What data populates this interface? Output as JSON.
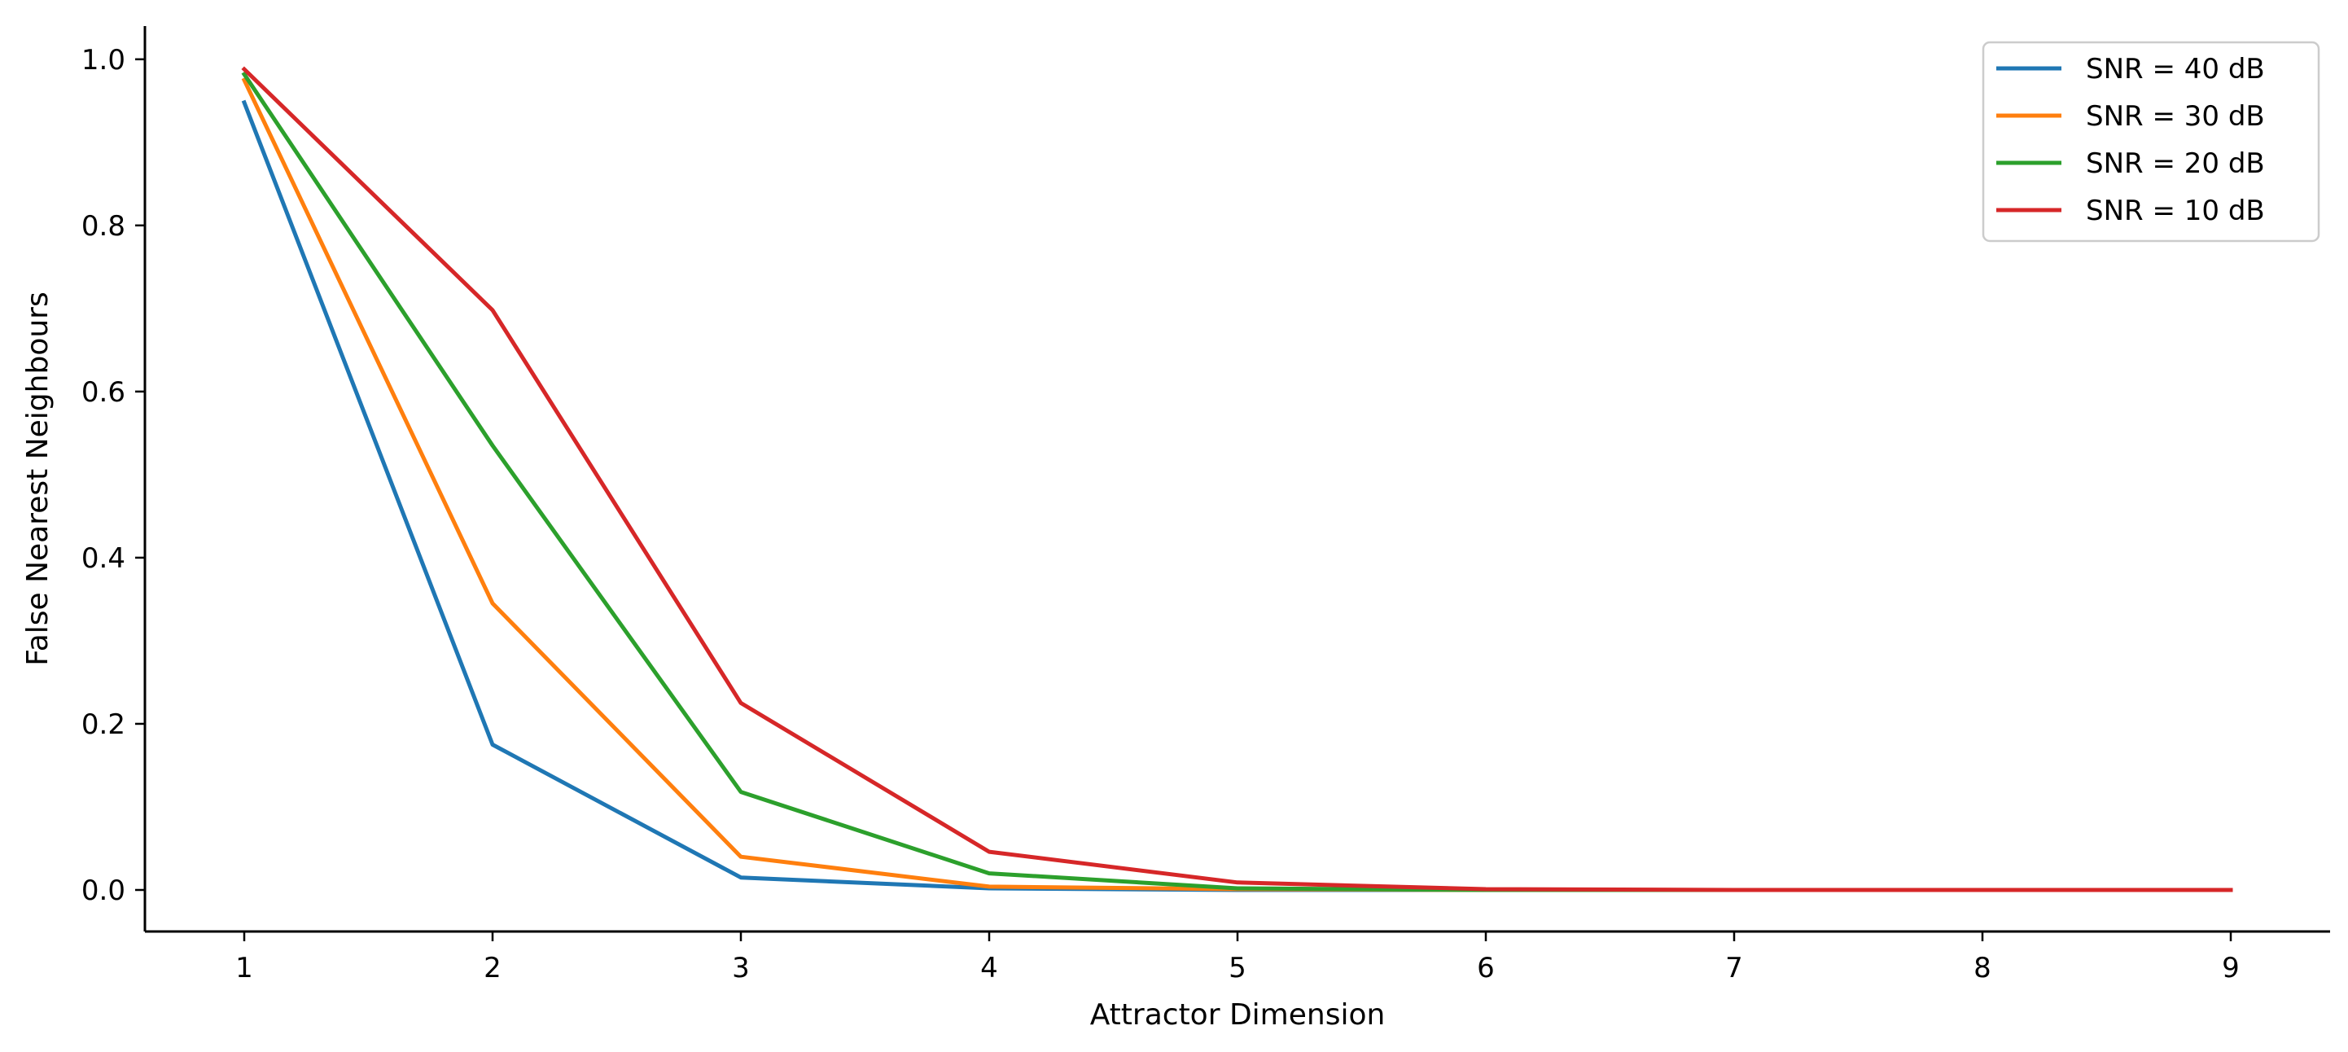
{
  "chart_data": {
    "type": "line",
    "title": "",
    "xlabel": "Attractor Dimension",
    "ylabel": "False Nearest Neighbours",
    "x": [
      1,
      2,
      3,
      4,
      5,
      6,
      7,
      8,
      9
    ],
    "xlim": [
      0.6,
      9.4
    ],
    "ylim": [
      -0.05,
      1.04
    ],
    "xticks": [
      "1",
      "2",
      "3",
      "4",
      "5",
      "6",
      "7",
      "8",
      "9"
    ],
    "yticks": [
      "0.0",
      "0.2",
      "0.4",
      "0.6",
      "0.8",
      "1.0"
    ],
    "grid": false,
    "legend_position": "top-right",
    "series": [
      {
        "name": "SNR = 40 dB",
        "color": "#1f77b4",
        "values": [
          0.948,
          0.175,
          0.015,
          0.002,
          0.0,
          0.0,
          0.0,
          0.0,
          0.0
        ]
      },
      {
        "name": "SNR = 30 dB",
        "color": "#ff7f0e",
        "values": [
          0.975,
          0.345,
          0.04,
          0.004,
          0.001,
          0.0,
          0.0,
          0.0,
          0.0
        ]
      },
      {
        "name": "SNR = 20 dB",
        "color": "#2ca02c",
        "values": [
          0.982,
          0.535,
          0.118,
          0.02,
          0.002,
          0.0,
          0.0,
          0.0,
          0.0
        ]
      },
      {
        "name": "SNR = 10 dB",
        "color": "#d62728",
        "values": [
          0.988,
          0.698,
          0.225,
          0.046,
          0.009,
          0.001,
          0.0,
          0.0,
          0.0
        ]
      }
    ]
  }
}
